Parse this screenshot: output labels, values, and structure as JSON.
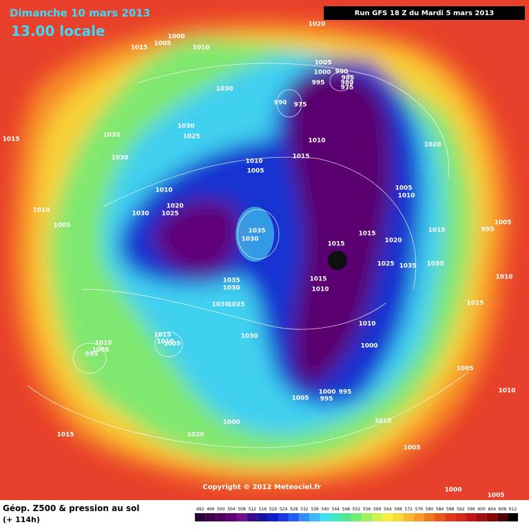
{
  "header": {
    "title": "Dimanche 10 mars 2013",
    "time": "13.00 locale",
    "run": "Run GFS 18 Z du Mardi 5 mars 2013"
  },
  "copyright": "Copyright © 2012 Meteociel.fr",
  "legend": {
    "title": "Géop. Z500 & pression au sol",
    "subtitle": "(+ 114h)",
    "values": [
      492,
      496,
      500,
      504,
      508,
      512,
      516,
      520,
      524,
      528,
      532,
      536,
      540,
      544,
      548,
      552,
      556,
      560,
      564,
      568,
      572,
      576,
      580,
      584,
      588,
      592,
      596,
      600,
      604,
      608,
      612
    ],
    "colors": [
      "#2a0030",
      "#3c0048",
      "#4e0060",
      "#600078",
      "#70108a",
      "#3a0a8c",
      "#1a10a0",
      "#1020c8",
      "#1838e0",
      "#2060f0",
      "#3090f8",
      "#40b8f8",
      "#40e0f0",
      "#40e8c0",
      "#50e890",
      "#70f070",
      "#a0f060",
      "#d0f050",
      "#f8f040",
      "#f8d838",
      "#f8b830",
      "#f89828",
      "#f07820",
      "#e85818",
      "#e03818",
      "#d82818",
      "#c01818",
      "#a01010",
      "#800808",
      "#500404",
      "#000000"
    ]
  },
  "pressure_labels": [
    1000,
    1005,
    1010,
    1015,
    1020,
    1030,
    1030,
    1030,
    1025,
    1030,
    1015,
    1010,
    1020,
    1025,
    1030,
    1010,
    1005,
    1035,
    1030,
    1010,
    1005,
    1010,
    1015,
    1005,
    1000,
    995,
    990,
    985,
    980,
    975,
    990,
    975,
    1020,
    1005,
    1010,
    1015,
    1015,
    1020,
    1025,
    1035,
    1030,
    1015,
    995,
    1005,
    1010,
    1015,
    1015,
    1010,
    1035,
    1030,
    1030,
    1025,
    1030,
    1015,
    1010,
    1005,
    1010,
    1005,
    995,
    1010,
    1000,
    1005,
    1005,
    1000,
    995,
    995,
    1010,
    1005,
    1010,
    1000,
    1020,
    1015,
    1000,
    1005
  ]
}
